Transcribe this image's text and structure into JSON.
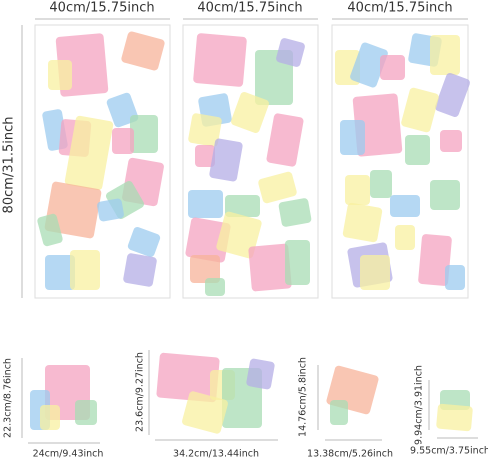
{
  "sheets": [
    {
      "width": "40cm/15.75inch"
    },
    {
      "width": "40cm/15.75inch"
    },
    {
      "width": "40cm/15.75inch"
    }
  ],
  "height": "80cm/31.5inch",
  "pieces": [
    {
      "height": "22.3cm/8.76inch",
      "width": "24cm/9.43inch"
    },
    {
      "height": "23.6cm/9.27inch",
      "width": "34.2cm/13.44inch"
    },
    {
      "height": "14.76cm/5.8inch",
      "width": "13.38cm/5.26inch"
    },
    {
      "height": "9.94cm/3.91inch",
      "width": "9.55cm/3.75inch"
    }
  ]
}
